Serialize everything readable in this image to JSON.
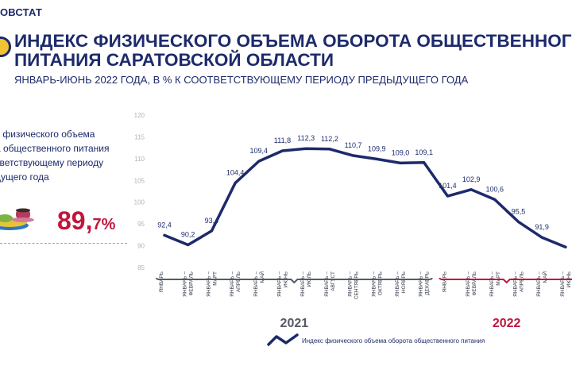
{
  "header": {
    "brand": "ОВСТАТ",
    "title_line1": "ИНДЕКС ФИЗИЧЕСКОГО ОБЪЕМА ОБОРОТА ОБЩЕСТВЕННОГО",
    "title_line2": "ПИТАНИЯ САРАТОВСКОЙ ОБЛАСТИ",
    "subtitle": "ЯНВАРЬ-ИЮНЬ 2022 ГОДА, В % К СООТВЕТСТВУЮЩЕМУ ПЕРИОДУ ПРЕДЫДУЩЕГО ГОДА"
  },
  "side_panel": {
    "lines": [
      "с физического объема",
      "а общественного питания",
      "тветствующему периоду",
      "дущего года"
    ],
    "value_main": "89,",
    "value_fraction": "7%",
    "icon": "dishes-icon"
  },
  "chart_data": {
    "type": "line",
    "categories": [
      "ЯНВАРЬ",
      "ЯНВАРЬ – ФЕВРАЛЬ",
      "ЯНВАРЬ – МАРТ",
      "ЯНВАРЬ – АПРЕЛЬ",
      "ЯНВАРЬ – МАЙ",
      "ЯНВАРЬ – ИЮНЬ",
      "ЯНВАРЬ – ИЮЛЬ",
      "ЯНВАРЬ – АВГУСТ",
      "ЯНВАРЬ – СЕНТЯБРЬ",
      "ЯНВАРЬ – ОКТЯБРЬ",
      "ЯНВАРЬ – НОЯБРЬ",
      "ЯНВАРЬ – ДЕКАБРЬ",
      "ЯНВАРЬ",
      "ЯНВАРЬ – ФЕВРАЛЬ",
      "ЯНВАРЬ – МАРТ",
      "ЯНВАРЬ – АПРЕЛЬ",
      "ЯНВАРЬ – МАЙ",
      "ЯНВАРЬ – ИЮНЬ"
    ],
    "series": [
      {
        "name": "Индекс физического объема оборота общественного питания",
        "values": [
          92.4,
          90.2,
          93.4,
          104.4,
          109.4,
          111.8,
          112.3,
          112.2,
          110.7,
          109.9,
          109.0,
          109.1,
          101.4,
          102.9,
          100.6,
          95.5,
          91.9,
          89.7
        ],
        "labels": [
          "92,4",
          "90,2",
          "93,4",
          "104,4",
          "109,4",
          "111,8",
          "112,3",
          "112,2",
          "110,7",
          "109,9",
          "109,0",
          "109,1",
          "101,4",
          "102,9",
          "100,6",
          "95,5",
          "91,9",
          ""
        ]
      }
    ],
    "ylim": [
      85,
      120
    ],
    "yticks": [
      85,
      90,
      95,
      100,
      105,
      110,
      115,
      120
    ],
    "groups": [
      {
        "label": "2021",
        "from": 0,
        "to": 11,
        "color": "#555a66"
      },
      {
        "label": "2022",
        "from": 12,
        "to": 17,
        "color": "#c0163e"
      }
    ],
    "line_color": "#1d2a6b",
    "grid": false,
    "legend": "bottom"
  }
}
